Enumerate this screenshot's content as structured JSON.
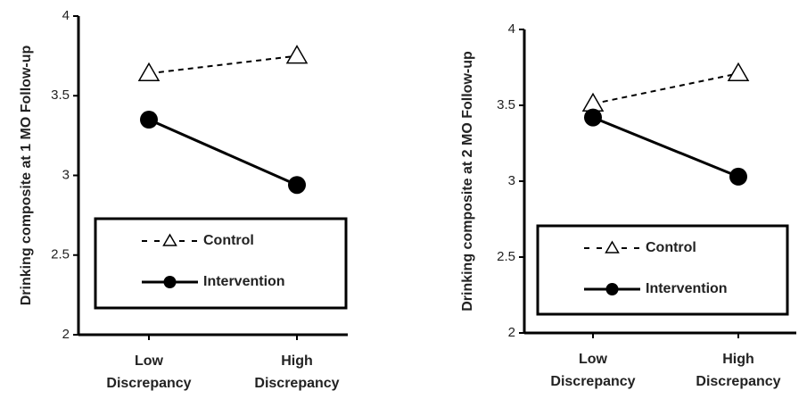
{
  "chart_data": [
    {
      "type": "line",
      "y_label": "Drinking composite at 1 MO Follow-up",
      "categories": [
        "Low Discrepancy",
        "High Discrepancy"
      ],
      "ylim": [
        2,
        4
      ],
      "yticks": [
        2,
        2.5,
        3,
        3.5,
        4
      ],
      "series": [
        {
          "name": "Control",
          "color": "#000000",
          "dashed": true,
          "marker": "triangle",
          "values": [
            3.64,
            3.75
          ]
        },
        {
          "name": "Intervention",
          "color": "#000000",
          "dashed": false,
          "marker": "circle",
          "values": [
            3.35,
            2.94
          ]
        }
      ]
    },
    {
      "type": "line",
      "y_label": "Drinking composite at 2 MO Follow-up",
      "categories": [
        "Low Discrepancy",
        "High Discrepancy"
      ],
      "ylim": [
        2,
        4
      ],
      "yticks": [
        2,
        2.5,
        3,
        3.5,
        4
      ],
      "series": [
        {
          "name": "Control",
          "color": "#000000",
          "dashed": true,
          "marker": "triangle",
          "values": [
            3.51,
            3.71
          ]
        },
        {
          "name": "Intervention",
          "color": "#000000",
          "dashed": false,
          "marker": "circle",
          "values": [
            3.42,
            3.03
          ]
        }
      ]
    }
  ]
}
